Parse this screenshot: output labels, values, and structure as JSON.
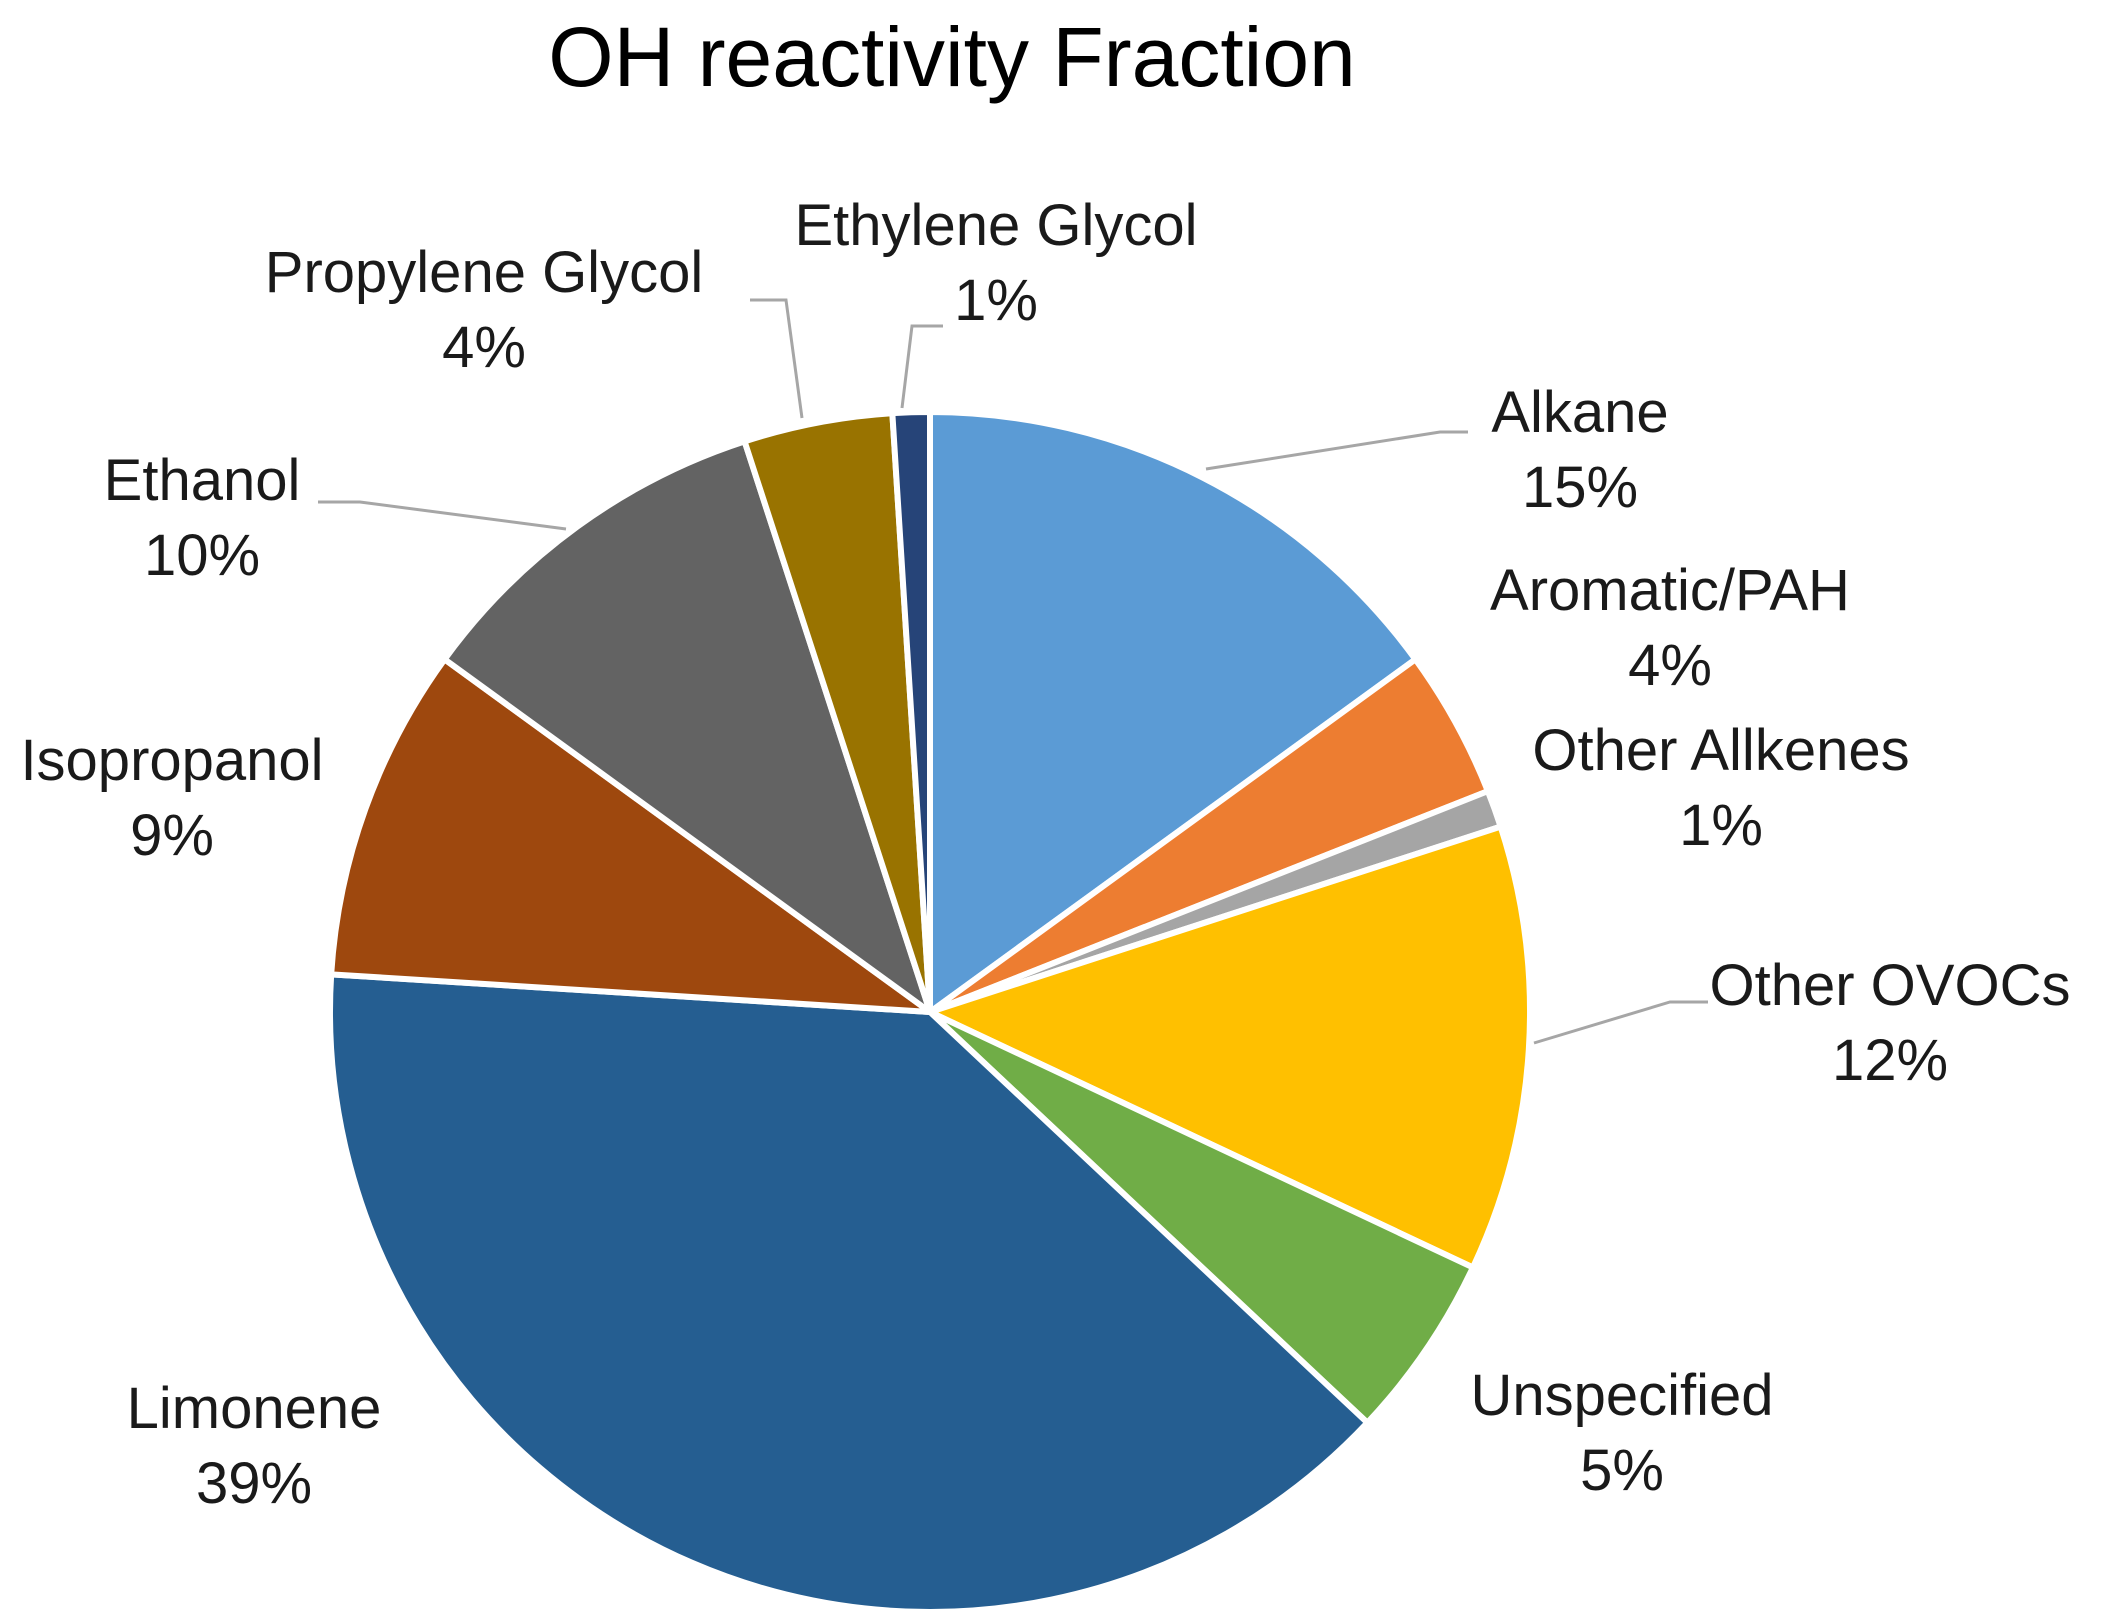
{
  "chart_data": {
    "type": "pie",
    "title": "OH reactivity Fraction",
    "categories": [
      "Alkane",
      "Aromatic/PAH",
      "Other Allkenes",
      "Other OVOCs",
      "Unspecified",
      "Limonene",
      "Isopropanol",
      "Ethanol",
      "Propylene Glycol",
      "Ethylene Glycol"
    ],
    "values": [
      15,
      4,
      1,
      12,
      5,
      39,
      9,
      10,
      4,
      1
    ],
    "value_labels": [
      "15%",
      "4%",
      "1%",
      "12%",
      "5%",
      "39%",
      "9%",
      "10%",
      "4%",
      "1%"
    ],
    "colors": [
      "#5B9BD5",
      "#ED7D31",
      "#A5A5A5",
      "#FFC000",
      "#70AD47",
      "#255E91",
      "#9E480E",
      "#636363",
      "#997300",
      "#264478"
    ],
    "legend": "none",
    "start_angle_deg": 0,
    "direction": "clockwise"
  }
}
